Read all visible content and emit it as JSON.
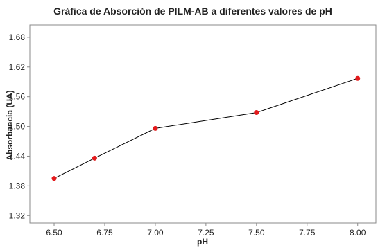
{
  "chart_data": {
    "type": "line",
    "title": "Gráfica de Absorción de PILM-AB a diferentes valores de pH",
    "xlabel": "pH",
    "ylabel": "Absorbancia (UA)",
    "x": [
      6.5,
      6.7,
      7.0,
      7.5,
      8.0
    ],
    "y": [
      1.395,
      1.436,
      1.496,
      1.528,
      1.597
    ],
    "xlim": [
      6.38,
      8.09
    ],
    "ylim": [
      1.305,
      1.705
    ],
    "x_ticks": [
      "6.50",
      "6.75",
      "7.00",
      "7.25",
      "7.50",
      "7.75",
      "8.00"
    ],
    "y_ticks": [
      "1.32",
      "1.38",
      "1.44",
      "1.50",
      "1.56",
      "1.62",
      "1.68"
    ],
    "grid": false,
    "line_color": "#000000",
    "marker_color": "#e31a1c"
  }
}
